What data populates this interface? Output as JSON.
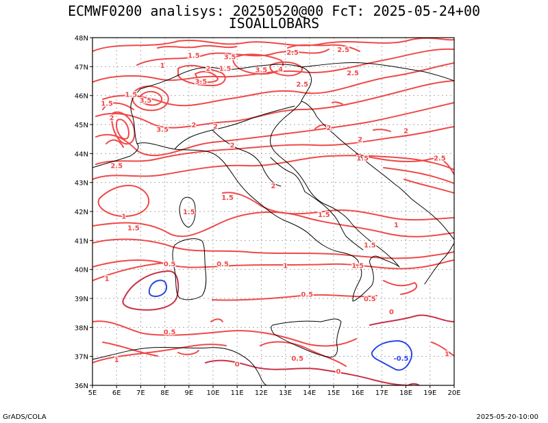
{
  "header": {
    "title_line1": "ECMWF0200 analisys: 20250520@00 FcT: 2025-05-24+00",
    "title_line2": "ISOALLOBARS"
  },
  "map": {
    "lat_labels": [
      "48N",
      "47N",
      "46N",
      "45N",
      "44N",
      "43N",
      "42N",
      "41N",
      "40N",
      "39N",
      "38N",
      "37N",
      "36N"
    ],
    "lon_labels": [
      "5E",
      "6E",
      "7E",
      "8E",
      "9E",
      "10E",
      "11E",
      "12E",
      "13E",
      "14E",
      "15E",
      "16E",
      "17E",
      "18E",
      "19E",
      "20E"
    ],
    "lat_range": [
      36,
      48
    ],
    "lon_range": [
      5,
      20
    ],
    "grid": "dotted",
    "colors": {
      "positive": "#f04848",
      "positive_dark": "#c83046",
      "negative": "#2846e6",
      "coast": "#000000",
      "grid": "#aaaaaa"
    },
    "contour_labels": [
      {
        "text": "1.5",
        "lon": 9.2,
        "lat": 47.4
      },
      {
        "text": "3.5",
        "lon": 10.7,
        "lat": 47.35
      },
      {
        "text": "2.5",
        "lon": 13.3,
        "lat": 47.5
      },
      {
        "text": "2.5",
        "lon": 15.4,
        "lat": 47.6
      },
      {
        "text": "1",
        "lon": 7.9,
        "lat": 47.05
      },
      {
        "text": "2",
        "lon": 9.8,
        "lat": 46.95
      },
      {
        "text": "1.5",
        "lon": 10.5,
        "lat": 46.95
      },
      {
        "text": "3.5",
        "lon": 12.0,
        "lat": 46.9
      },
      {
        "text": "4",
        "lon": 12.8,
        "lat": 46.92
      },
      {
        "text": "2.5",
        "lon": 15.8,
        "lat": 46.8
      },
      {
        "text": "3.5",
        "lon": 9.5,
        "lat": 46.5
      },
      {
        "text": "2.5",
        "lon": 13.7,
        "lat": 46.4
      },
      {
        "text": "1.5",
        "lon": 6.6,
        "lat": 46.05
      },
      {
        "text": "3.5",
        "lon": 7.2,
        "lat": 45.85
      },
      {
        "text": "1.5",
        "lon": 5.6,
        "lat": 45.75
      },
      {
        "text": "2",
        "lon": 5.8,
        "lat": 45.25
      },
      {
        "text": "3.5",
        "lon": 7.9,
        "lat": 44.85
      },
      {
        "text": "2",
        "lon": 9.2,
        "lat": 45.0
      },
      {
        "text": "2",
        "lon": 10.1,
        "lat": 44.95
      },
      {
        "text": "2",
        "lon": 14.8,
        "lat": 44.9
      },
      {
        "text": "2",
        "lon": 18.0,
        "lat": 44.8
      },
      {
        "text": "2",
        "lon": 16.1,
        "lat": 44.5
      },
      {
        "text": "2",
        "lon": 10.8,
        "lat": 44.3
      },
      {
        "text": "1.5",
        "lon": 16.2,
        "lat": 43.85
      },
      {
        "text": "2.5",
        "lon": 19.4,
        "lat": 43.85
      },
      {
        "text": "2.5",
        "lon": 6.0,
        "lat": 43.6
      },
      {
        "text": "2",
        "lon": 12.5,
        "lat": 42.9
      },
      {
        "text": "1.5",
        "lon": 10.6,
        "lat": 42.5
      },
      {
        "text": "1.5",
        "lon": 9.0,
        "lat": 42.0
      },
      {
        "text": "1",
        "lon": 6.3,
        "lat": 41.85
      },
      {
        "text": "1.5",
        "lon": 14.6,
        "lat": 41.9
      },
      {
        "text": "1.5",
        "lon": 6.7,
        "lat": 41.45
      },
      {
        "text": "1",
        "lon": 17.6,
        "lat": 41.55
      },
      {
        "text": "1.5",
        "lon": 16.5,
        "lat": 40.85
      },
      {
        "text": "0.5",
        "lon": 8.2,
        "lat": 40.2
      },
      {
        "text": "0.5",
        "lon": 10.4,
        "lat": 40.2
      },
      {
        "text": "1",
        "lon": 13.0,
        "lat": 40.15
      },
      {
        "text": "1.5",
        "lon": 16.0,
        "lat": 40.15
      },
      {
        "text": "1",
        "lon": 5.6,
        "lat": 39.7
      },
      {
        "text": "0.5",
        "lon": 13.9,
        "lat": 39.15
      },
      {
        "text": "0.5",
        "lon": 16.5,
        "lat": 39.0
      },
      {
        "text": "0",
        "lon": 17.4,
        "lat": 38.55
      },
      {
        "text": "0.5",
        "lon": 8.2,
        "lat": 37.85
      },
      {
        "text": "0.5",
        "lon": 13.5,
        "lat": 36.95
      },
      {
        "text": "1",
        "lon": 6.0,
        "lat": 36.9
      },
      {
        "text": "0",
        "lon": 11.0,
        "lat": 36.75
      },
      {
        "text": "0",
        "lon": 15.2,
        "lat": 36.5
      },
      {
        "text": "-0.5",
        "lon": 17.8,
        "lat": 36.95
      },
      {
        "text": "1",
        "lon": 19.7,
        "lat": 37.1
      }
    ]
  },
  "footer": {
    "left": "GrADS/COLA",
    "right": "2025-05-20-10:00"
  }
}
